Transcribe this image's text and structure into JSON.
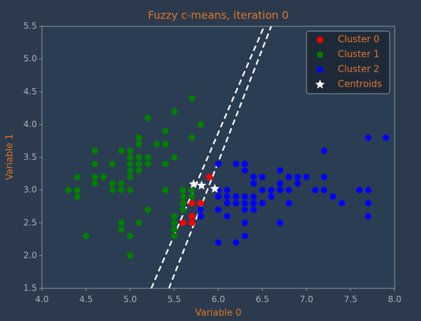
{
  "chart_data": {
    "type": "scatter",
    "title": "Fuzzy c-means, iteration 0",
    "xlabel": "Variable 0",
    "ylabel": "Variable 1",
    "xlim": [
      4.0,
      8.0
    ],
    "ylim": [
      1.5,
      5.5
    ],
    "xticks": [
      {
        "value": 4,
        "label": "4.0"
      },
      4.5,
      {
        "value": 5,
        "label": "5.0"
      },
      5.5,
      {
        "value": 6,
        "label": "6.0"
      },
      6.5,
      {
        "value": 7,
        "label": "7.0"
      },
      7.5,
      {
        "value": 8,
        "label": "8.0"
      }
    ],
    "yticks": [
      1.5,
      {
        "value": 2,
        "label": "2.0"
      },
      2.5,
      {
        "value": 3,
        "label": "3.0"
      },
      3.5,
      {
        "value": 4,
        "label": "4.0"
      },
      4.5,
      {
        "value": 5,
        "label": "5.0"
      },
      5.5
    ],
    "legend": "upper right",
    "series": [
      {
        "name": "Cluster 0",
        "color": "#ff0000",
        "marker": "circle",
        "x": [
          5.6,
          5.7,
          5.7,
          5.7,
          5.8,
          5.9
        ],
        "y": [
          2.5,
          2.6,
          2.5,
          2.8,
          2.8,
          3.2
        ]
      },
      {
        "name": "Cluster 1",
        "color": "#008000",
        "marker": "circle",
        "x": [
          4.3,
          4.4,
          4.4,
          4.4,
          4.5,
          4.6,
          4.6,
          4.6,
          4.6,
          4.7,
          4.8,
          4.8,
          4.8,
          4.9,
          4.9,
          4.9,
          4.9,
          4.9,
          5.0,
          5.0,
          5.0,
          5.0,
          5.0,
          5.0,
          5.0,
          5.0,
          5.1,
          5.1,
          5.1,
          5.1,
          5.1,
          5.1,
          5.2,
          5.2,
          5.2,
          5.2,
          5.3,
          5.4,
          5.4,
          5.4,
          5.4,
          5.5,
          5.5,
          5.5,
          5.5,
          5.5,
          5.5,
          5.6,
          5.6,
          5.6,
          5.6,
          5.7,
          5.7,
          5.7,
          5.7,
          5.8,
          5.8
        ],
        "y": [
          3.0,
          3.0,
          2.9,
          3.2,
          2.3,
          3.6,
          3.4,
          3.1,
          3.2,
          3.2,
          3.4,
          3.0,
          3.1,
          3.0,
          3.1,
          3.6,
          2.5,
          2.4,
          3.6,
          3.4,
          3.0,
          3.3,
          3.2,
          3.5,
          2.3,
          2.0,
          3.5,
          3.8,
          3.7,
          3.3,
          3.4,
          2.5,
          3.5,
          3.4,
          4.1,
          2.7,
          3.7,
          3.9,
          3.7,
          3.4,
          3.0,
          4.2,
          3.5,
          2.6,
          2.5,
          2.4,
          2.3,
          3.0,
          2.9,
          2.8,
          2.7,
          4.4,
          3.8,
          3.0,
          2.9,
          4.0,
          2.7
        ]
      },
      {
        "name": "Cluster 2",
        "color": "#0000ff",
        "marker": "circle",
        "x": [
          5.8,
          5.8,
          6.0,
          6.0,
          6.0,
          6.0,
          6.0,
          6.1,
          6.1,
          6.1,
          6.1,
          6.2,
          6.2,
          6.2,
          6.2,
          6.3,
          6.3,
          6.3,
          6.3,
          6.3,
          6.3,
          6.3,
          6.4,
          6.4,
          6.4,
          6.4,
          6.4,
          6.5,
          6.5,
          6.5,
          6.6,
          6.6,
          6.7,
          6.7,
          6.7,
          6.7,
          6.8,
          6.8,
          6.8,
          6.9,
          6.9,
          7.0,
          7.1,
          7.2,
          7.2,
          7.2,
          7.3,
          7.4,
          7.6,
          7.7,
          7.7,
          7.7,
          7.7,
          7.9
        ],
        "y": [
          2.7,
          2.6,
          3.4,
          3.0,
          2.9,
          2.7,
          2.2,
          3.0,
          2.9,
          2.8,
          2.6,
          3.4,
          2.9,
          2.8,
          2.2,
          3.4,
          3.3,
          2.9,
          2.8,
          2.7,
          2.5,
          2.3,
          3.2,
          3.1,
          2.9,
          2.8,
          2.7,
          3.2,
          3.0,
          2.8,
          3.0,
          2.9,
          3.3,
          3.1,
          3.0,
          2.5,
          3.2,
          3.0,
          2.8,
          3.2,
          3.1,
          3.2,
          3.0,
          3.6,
          3.2,
          3.0,
          2.9,
          2.8,
          3.0,
          3.8,
          3.0,
          2.8,
          2.6,
          3.8
        ]
      },
      {
        "name": "Centroids",
        "color": "#ffffff",
        "marker": "star",
        "x": [
          5.72,
          5.81,
          5.96
        ],
        "y": [
          3.09,
          3.07,
          3.02
        ]
      }
    ],
    "boundaries": [
      {
        "color": "#ffffff",
        "x": [
          5.24,
          6.52
        ],
        "y": [
          1.5,
          5.5
        ]
      },
      {
        "color": "#ffffff",
        "x": [
          5.44,
          6.6
        ],
        "y": [
          1.5,
          5.5
        ]
      }
    ]
  }
}
